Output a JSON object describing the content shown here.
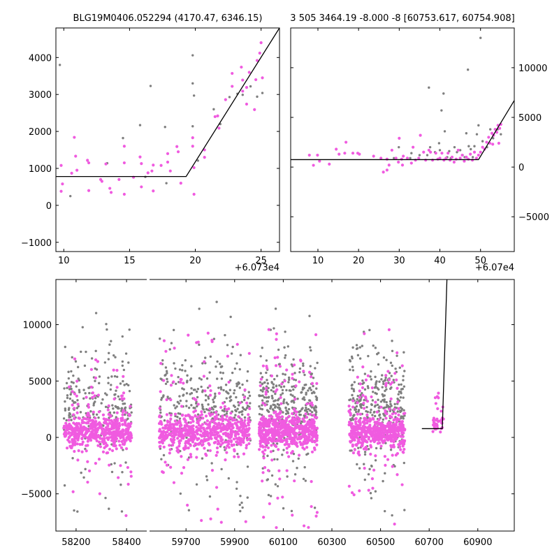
{
  "colors": {
    "pink": "#f05be0",
    "gray": "#7f7f7f",
    "model_line": "#000000",
    "background": "#ffffff"
  },
  "chart_data": [
    {
      "id": "top_left",
      "type": "scatter",
      "title": "BLG19M0406.052294 (4170.47, 6346.15)",
      "offset_label": "+6.073e4",
      "xlim": [
        9.4,
        26.4
      ],
      "ylim": [
        -1250,
        4800
      ],
      "x_ticks": [
        10,
        15,
        20,
        25
      ],
      "x_tick_labels": [
        "10",
        "15",
        "20",
        "25"
      ],
      "y_ticks": [
        -1000,
        0,
        1000,
        2000,
        3000,
        4000
      ],
      "y_tick_labels": [
        "−1000",
        "0",
        "1000",
        "2000",
        "3000",
        "4000"
      ],
      "y_axis_side": "left",
      "model_line": {
        "x": [
          9.4,
          19.3,
          26.4
        ],
        "y": [
          780,
          780,
          4800
        ]
      },
      "series": [
        {
          "color": "pink",
          "points": [
            [
              9.8,
              1080
            ],
            [
              9.8,
              380
            ],
            [
              9.9,
              580
            ],
            [
              10.6,
              870
            ],
            [
              10.8,
              1840
            ],
            [
              10.9,
              1330
            ],
            [
              11.0,
              950
            ],
            [
              11.8,
              1220
            ],
            [
              11.9,
              1150
            ],
            [
              11.9,
              400
            ],
            [
              12.8,
              700
            ],
            [
              12.9,
              650
            ],
            [
              13.2,
              1120
            ],
            [
              13.5,
              460
            ],
            [
              13.6,
              350
            ],
            [
              14.2,
              700
            ],
            [
              14.6,
              1600
            ],
            [
              14.6,
              1150
            ],
            [
              14.6,
              300
            ],
            [
              15.3,
              760
            ],
            [
              15.8,
              1310
            ],
            [
              15.9,
              1130
            ],
            [
              15.9,
              500
            ],
            [
              16.4,
              880
            ],
            [
              16.7,
              930
            ],
            [
              16.8,
              390
            ],
            [
              16.8,
              1090
            ],
            [
              17.4,
              1080
            ],
            [
              17.9,
              1400
            ],
            [
              17.9,
              1170
            ],
            [
              18.1,
              930
            ],
            [
              18.6,
              1590
            ],
            [
              18.7,
              1450
            ],
            [
              18.9,
              600
            ],
            [
              19.8,
              1830
            ],
            [
              19.8,
              1600
            ],
            [
              19.9,
              1020
            ],
            [
              19.9,
              300
            ],
            [
              20.7,
              1500
            ],
            [
              20.7,
              1300
            ],
            [
              21.5,
              2400
            ],
            [
              21.7,
              2420
            ],
            [
              21.8,
              2090
            ],
            [
              22.3,
              2860
            ],
            [
              22.8,
              3570
            ],
            [
              22.8,
              3220
            ],
            [
              23.5,
              3740
            ],
            [
              23.6,
              3390
            ],
            [
              23.6,
              3090
            ],
            [
              23.9,
              3190
            ],
            [
              23.9,
              2740
            ],
            [
              24.1,
              3600
            ],
            [
              24.5,
              2590
            ],
            [
              24.6,
              3400
            ],
            [
              24.7,
              3920
            ],
            [
              24.9,
              4120
            ],
            [
              25.0,
              4400
            ],
            [
              25.1,
              3450
            ]
          ]
        },
        {
          "color": "gray",
          "points": [
            [
              9.7,
              3800
            ],
            [
              10.5,
              250
            ],
            [
              11.8,
              1210
            ],
            [
              13.3,
              1140
            ],
            [
              14.5,
              1820
            ],
            [
              15.8,
              2170
            ],
            [
              16.2,
              770
            ],
            [
              16.6,
              3230
            ],
            [
              17.7,
              2120
            ],
            [
              17.8,
              600
            ],
            [
              19.8,
              4060
            ],
            [
              19.8,
              3300
            ],
            [
              19.9,
              2970
            ],
            [
              19.8,
              2140
            ],
            [
              20.2,
              1210
            ],
            [
              21.4,
              2600
            ],
            [
              21.9,
              2200
            ],
            [
              22.6,
              2930
            ],
            [
              23.2,
              3020
            ],
            [
              23.6,
              2990
            ],
            [
              24.2,
              3220
            ],
            [
              24.7,
              2940
            ],
            [
              25.1,
              3040
            ]
          ]
        }
      ]
    },
    {
      "id": "top_right",
      "type": "scatter",
      "title": "3 505 3464.19 -8.000 -8 [60753.617, 60754.908]",
      "offset_label": "+6.07e4",
      "xlim": [
        3.3,
        58.3
      ],
      "ylim": [
        -8500,
        14000
      ],
      "x_ticks": [
        10,
        20,
        30,
        40,
        50
      ],
      "x_tick_labels": [
        "10",
        "20",
        "30",
        "40",
        "50"
      ],
      "y_ticks": [
        -5000,
        0,
        5000,
        10000
      ],
      "y_tick_labels": [
        "−5000",
        "0",
        "5000",
        "10000"
      ],
      "y_axis_side": "right",
      "model_line": {
        "x": [
          3.3,
          49.5,
          58.3
        ],
        "y": [
          750,
          750,
          6700
        ]
      },
      "series": [
        {
          "color": "pink",
          "points": [
            [
              7.9,
              1200
            ],
            [
              8.9,
              180
            ],
            [
              9.9,
              1200
            ],
            [
              10.4,
              600
            ],
            [
              12.8,
              300
            ],
            [
              14.5,
              1800
            ],
            [
              15.2,
              1300
            ],
            [
              16.6,
              1400
            ],
            [
              16.9,
              2500
            ],
            [
              18.6,
              1400
            ],
            [
              19.8,
              1400
            ],
            [
              20.2,
              1300
            ],
            [
              23.7,
              1100
            ],
            [
              25.5,
              900
            ],
            [
              26.1,
              -500
            ],
            [
              27.0,
              -300
            ],
            [
              27.0,
              800
            ],
            [
              27.5,
              200
            ],
            [
              28.2,
              1700
            ],
            [
              29.2,
              900
            ],
            [
              29.8,
              500
            ],
            [
              30.0,
              2900
            ],
            [
              30.6,
              800
            ],
            [
              30.8,
              200
            ],
            [
              31.0,
              1100
            ],
            [
              32.0,
              900
            ],
            [
              33.0,
              400
            ],
            [
              33.4,
              2000
            ],
            [
              34.0,
              700
            ],
            [
              34.8,
              900
            ],
            [
              35.2,
              3200
            ],
            [
              36.0,
              1500
            ],
            [
              36.5,
              700
            ],
            [
              37.3,
              1700
            ],
            [
              37.7,
              1500
            ],
            [
              38.2,
              700
            ],
            [
              39.0,
              1400
            ],
            [
              39.5,
              800
            ],
            [
              40.0,
              900
            ],
            [
              40.5,
              1400
            ],
            [
              41.0,
              700
            ],
            [
              41.5,
              900
            ],
            [
              42.0,
              1400
            ],
            [
              42.5,
              700
            ],
            [
              43.0,
              1000
            ],
            [
              43.5,
              500
            ],
            [
              44.0,
              800
            ],
            [
              44.5,
              1700
            ],
            [
              45.0,
              900
            ],
            [
              45.5,
              1200
            ],
            [
              46.0,
              600
            ],
            [
              46.5,
              1000
            ],
            [
              47.0,
              800
            ],
            [
              47.5,
              1300
            ],
            [
              48.0,
              700
            ],
            [
              48.5,
              1500
            ],
            [
              49.0,
              900
            ],
            [
              49.5,
              1200
            ],
            [
              50.0,
              1500
            ],
            [
              50.5,
              2000
            ],
            [
              51.0,
              1800
            ],
            [
              51.5,
              2500
            ],
            [
              52.0,
              3000
            ],
            [
              52.3,
              2400
            ],
            [
              52.8,
              3400
            ],
            [
              53.2,
              3200
            ],
            [
              53.6,
              3800
            ],
            [
              54.0,
              3500
            ],
            [
              54.3,
              4200
            ],
            [
              54.7,
              3900
            ],
            [
              55.0,
              4300
            ],
            [
              54.5,
              2400
            ],
            [
              53.0,
              2300
            ]
          ]
        },
        {
          "color": "gray",
          "points": [
            [
              28.7,
              900
            ],
            [
              29.9,
              2000
            ],
            [
              32.7,
              900
            ],
            [
              33.0,
              1400
            ],
            [
              35.0,
              1200
            ],
            [
              36.0,
              1500
            ],
            [
              36.9,
              1200
            ],
            [
              37.3,
              8000
            ],
            [
              37.6,
              2000
            ],
            [
              38.8,
              1500
            ],
            [
              39.8,
              2400
            ],
            [
              40.0,
              1700
            ],
            [
              40.4,
              5700
            ],
            [
              40.9,
              7400
            ],
            [
              41.2,
              3600
            ],
            [
              41.8,
              1000
            ],
            [
              42.3,
              1600
            ],
            [
              42.7,
              900
            ],
            [
              43.6,
              2000
            ],
            [
              44.2,
              1500
            ],
            [
              45.0,
              1700
            ],
            [
              45.6,
              1200
            ],
            [
              46.1,
              1000
            ],
            [
              46.5,
              3400
            ],
            [
              46.9,
              9800
            ],
            [
              47.1,
              2100
            ],
            [
              47.6,
              1800
            ],
            [
              48.1,
              1000
            ],
            [
              48.5,
              2100
            ],
            [
              49.1,
              3300
            ],
            [
              49.5,
              4200
            ],
            [
              50.0,
              13000
            ],
            [
              50.5,
              2600
            ],
            [
              51.0,
              1800
            ],
            [
              51.6,
              2000
            ],
            [
              52.4,
              3800
            ],
            [
              53.1,
              2900
            ],
            [
              54.2,
              3800
            ],
            [
              55.0,
              3300
            ]
          ]
        }
      ]
    },
    {
      "id": "bottom",
      "type": "scatter",
      "segments": [
        {
          "xlim": [
            58120,
            58480
          ],
          "x_ticks": [
            58200,
            58400
          ],
          "x_tick_labels": [
            "58200",
            "58400"
          ]
        },
        {
          "xlim": [
            59550,
            61050
          ],
          "x_ticks": [
            59700,
            59900,
            60100,
            60300,
            60500,
            60700,
            60900
          ],
          "x_tick_labels": [
            "59700",
            "59900",
            "60100",
            "60300",
            "60500",
            "60700",
            "60900"
          ]
        }
      ],
      "ylim": [
        -8300,
        14000
      ],
      "y_ticks": [
        -5000,
        0,
        5000,
        10000
      ],
      "y_tick_labels": [
        "−5000",
        "0",
        "5000",
        "10000"
      ],
      "y_axis_side": "left",
      "seasons": [
        {
          "x_range": [
            58150,
            58420
          ],
          "n_pink": 520,
          "n_gray": 230
        },
        {
          "x_range": [
            59590,
            59965
          ],
          "n_pink": 660,
          "n_gray": 310
        },
        {
          "x_range": [
            60000,
            60240
          ],
          "n_pink": 620,
          "n_gray": 330
        },
        {
          "x_range": [
            60370,
            60600
          ],
          "n_pink": 560,
          "n_gray": 300
        },
        {
          "x_range": [
            60715,
            60760
          ],
          "n_pink": 35,
          "n_gray": 0
        }
      ],
      "model_line": {
        "x": [
          60670,
          60735,
          60754,
          60773
        ],
        "y": [
          780,
          780,
          780,
          14000
        ]
      }
    }
  ]
}
